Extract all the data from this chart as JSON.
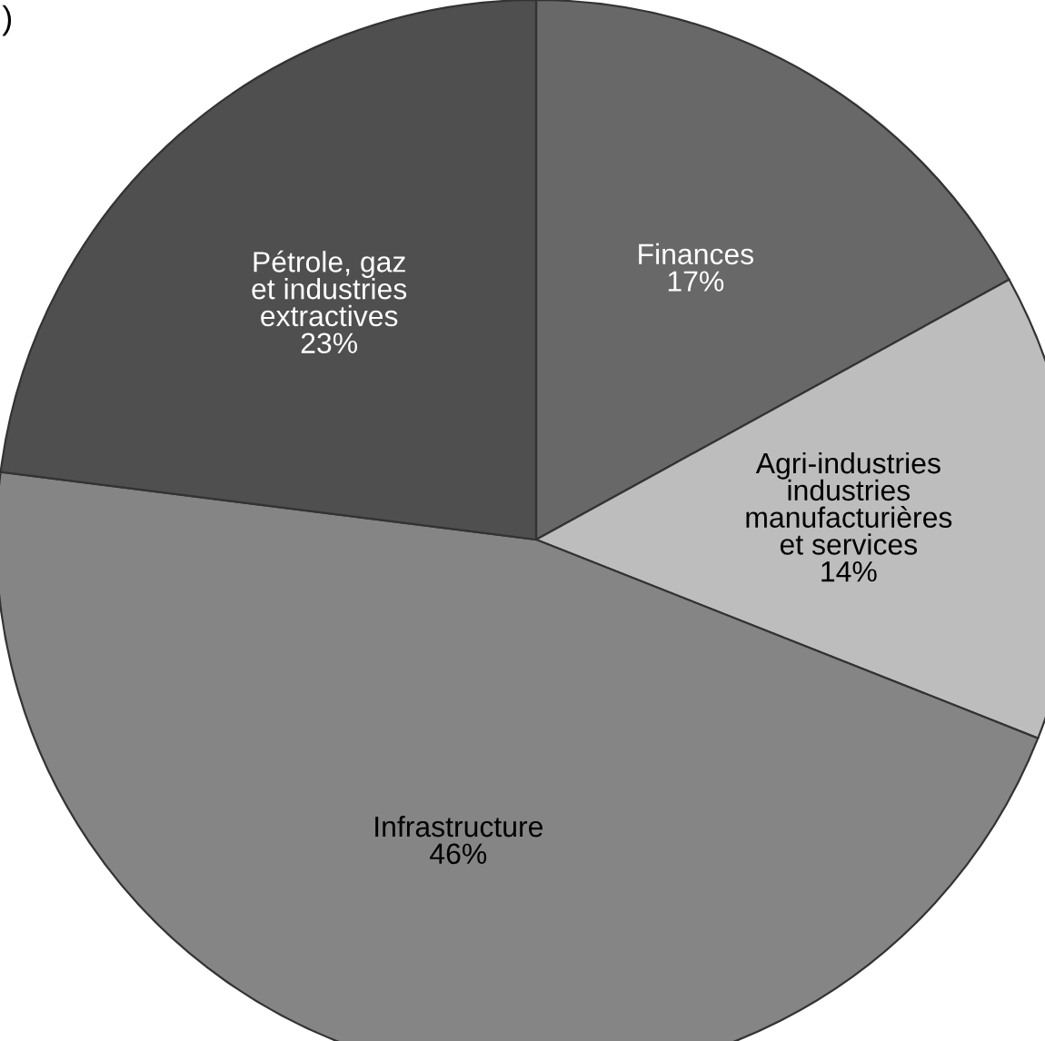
{
  "chart_data": {
    "type": "pie",
    "categories": [
      "Finances",
      "Agri-industries\nindustries\nmanufacturières\net services",
      "Infrastructure",
      "Pétrole, gaz\net industries\nextractives"
    ],
    "values": [
      17,
      14,
      46,
      23
    ],
    "colors": [
      "#686868",
      "#bdbdbd",
      "#858585",
      "#4f4f4f"
    ],
    "value_labels": [
      "17%",
      "14%",
      "46%",
      "23%"
    ],
    "annotations": [
      ")"
    ]
  }
}
